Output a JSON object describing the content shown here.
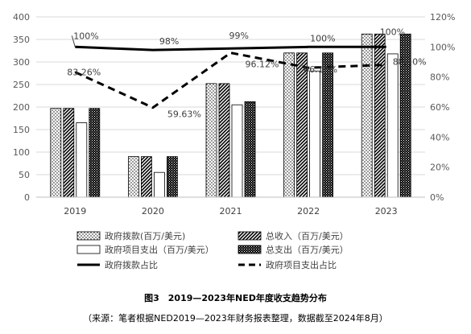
{
  "chart_data": {
    "type": "bar",
    "categories": [
      "2019",
      "2020",
      "2021",
      "2022",
      "2023"
    ],
    "y_left": {
      "min": 0,
      "max": 400,
      "step": 50,
      "ticks": [
        "0",
        "50",
        "100",
        "150",
        "200",
        "250",
        "300",
        "350",
        "400"
      ]
    },
    "y_right": {
      "min": 0,
      "max": 1.2,
      "ticks": [
        "0%",
        "20%",
        "40%",
        "60%",
        "80%",
        "100%",
        "120%"
      ]
    },
    "grid": true,
    "legend_position": "bottom",
    "bar_series": [
      {
        "name": "政府拨款(百万/美元)",
        "pattern": "dots",
        "values": [
          197,
          90,
          252,
          320,
          362
        ]
      },
      {
        "name": "总收入（百万/美元）",
        "pattern": "diagonal",
        "values": [
          197,
          90,
          252,
          320,
          362
        ]
      },
      {
        "name": "政府项目支出（百万/美元）",
        "pattern": "white",
        "values": [
          165,
          55,
          205,
          280,
          318
        ]
      },
      {
        "name": "总支出（百万/美元）",
        "pattern": "checker",
        "values": [
          197,
          90,
          212,
          320,
          362
        ]
      }
    ],
    "line_series": [
      {
        "name": "政府拨款占比",
        "style": "solid",
        "values": [
          1.0,
          0.98,
          0.99,
          1.0,
          1.0
        ],
        "labels": [
          "100%",
          "98%",
          "99%",
          "100%",
          "100%"
        ]
      },
      {
        "name": "政府项目支出占比",
        "style": "dashed",
        "values": [
          0.8326,
          0.5963,
          0.9612,
          0.8612,
          0.881
        ],
        "labels": [
          "83.26%",
          "59.63%",
          "96.12%",
          "86.12%",
          "88.10%"
        ]
      }
    ]
  },
  "caption": {
    "figure": "图3　2019—2023年NED年度收支趋势分布",
    "source": "（来源：笔者根据NED2019—2023年财务报表整理，数据截至2024年8月）"
  }
}
